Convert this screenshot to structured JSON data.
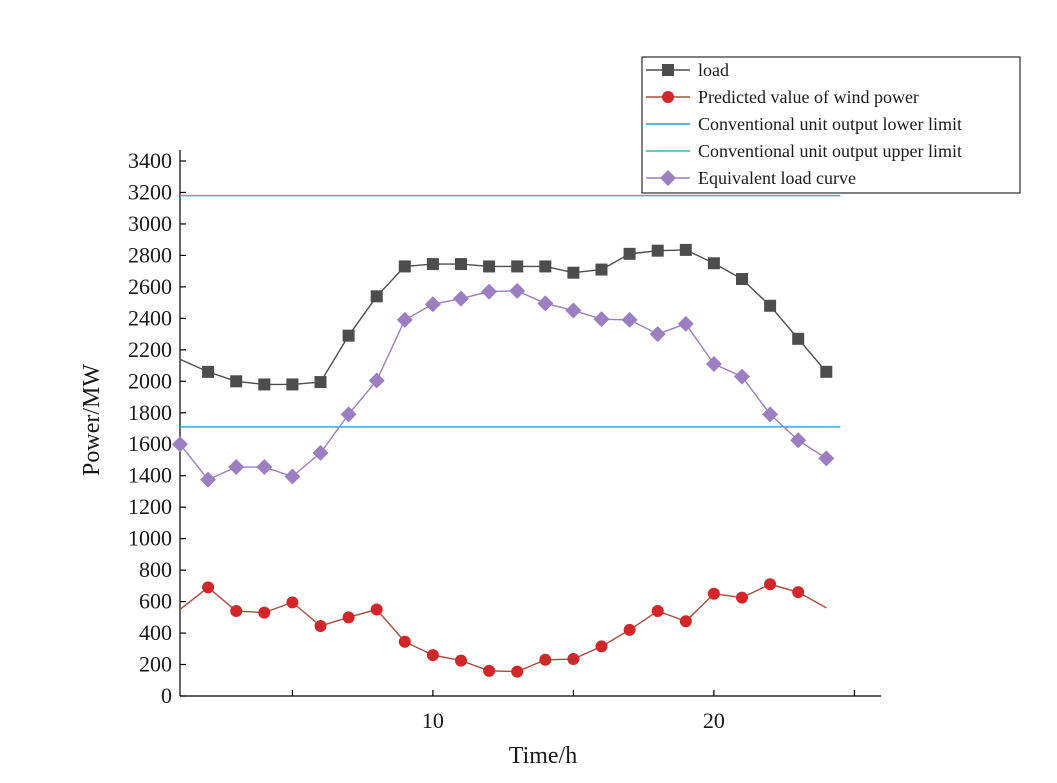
{
  "chart_data": {
    "type": "line",
    "title": "",
    "xlabel": "Time/h",
    "ylabel": "Power/MW",
    "xlim": [
      1,
      25.5
    ],
    "ylim": [
      0,
      3400
    ],
    "grid": false,
    "legend_position": "top-right",
    "x_ticks": [
      10,
      20
    ],
    "x_minor_ticks": [
      5,
      15,
      25
    ],
    "y_ticks": [
      0,
      200,
      400,
      600,
      800,
      1000,
      1200,
      1400,
      1600,
      1800,
      2000,
      2200,
      2400,
      2600,
      2800,
      3000,
      3200,
      3400
    ],
    "series": [
      {
        "name": "load",
        "color": "#4d4d4d",
        "marker": "square",
        "x": [
          1,
          2,
          3,
          4,
          5,
          6,
          7,
          8,
          9,
          10,
          11,
          12,
          13,
          14,
          15,
          16,
          17,
          18,
          19,
          20,
          21,
          22,
          23,
          24
        ],
        "values": [
          2140,
          2060,
          2000,
          1980,
          1980,
          1995,
          2290,
          2540,
          2730,
          2745,
          2745,
          2730,
          2730,
          2730,
          2690,
          2710,
          2810,
          2830,
          2835,
          2750,
          2650,
          2480,
          2270,
          2060
        ],
        "marker_from_index": 1
      },
      {
        "name": "Predicted value of wind power",
        "color": "#d2262a",
        "line_color": "#b04a3a",
        "marker": "circle",
        "x": [
          1,
          2,
          3,
          4,
          5,
          6,
          7,
          8,
          9,
          10,
          11,
          12,
          13,
          14,
          15,
          16,
          17,
          18,
          19,
          20,
          21,
          22,
          23,
          24
        ],
        "values": [
          550,
          690,
          540,
          530,
          595,
          445,
          500,
          550,
          345,
          260,
          225,
          160,
          155,
          230,
          235,
          315,
          420,
          540,
          475,
          650,
          625,
          710,
          660,
          560
        ],
        "marker_from_index": 1,
        "marker_to_index": 22
      },
      {
        "name": "Conventional unit output lower limit",
        "color": "#2a9fd0",
        "marker": "none",
        "x": [
          1,
          24.5
        ],
        "values": [
          1710,
          1710
        ]
      },
      {
        "name": "Conventional unit output upper limit",
        "color": "#41b79f",
        "marker": "none",
        "x": [
          1,
          24.5
        ],
        "values": [
          3180,
          3180
        ]
      },
      {
        "name": "Equivalent load curve",
        "color": "#9b7fc0",
        "marker": "diamond",
        "x": [
          1,
          2,
          3,
          4,
          5,
          6,
          7,
          8,
          9,
          10,
          11,
          12,
          13,
          14,
          15,
          16,
          17,
          18,
          19,
          20,
          21,
          22,
          23,
          24
        ],
        "values": [
          1600,
          1375,
          1455,
          1455,
          1395,
          1545,
          1790,
          2005,
          2390,
          2490,
          2525,
          2570,
          2575,
          2495,
          2450,
          2395,
          2390,
          2300,
          2365,
          2110,
          2030,
          1790,
          1625,
          1510
        ],
        "marker_from_index": 0
      }
    ]
  }
}
